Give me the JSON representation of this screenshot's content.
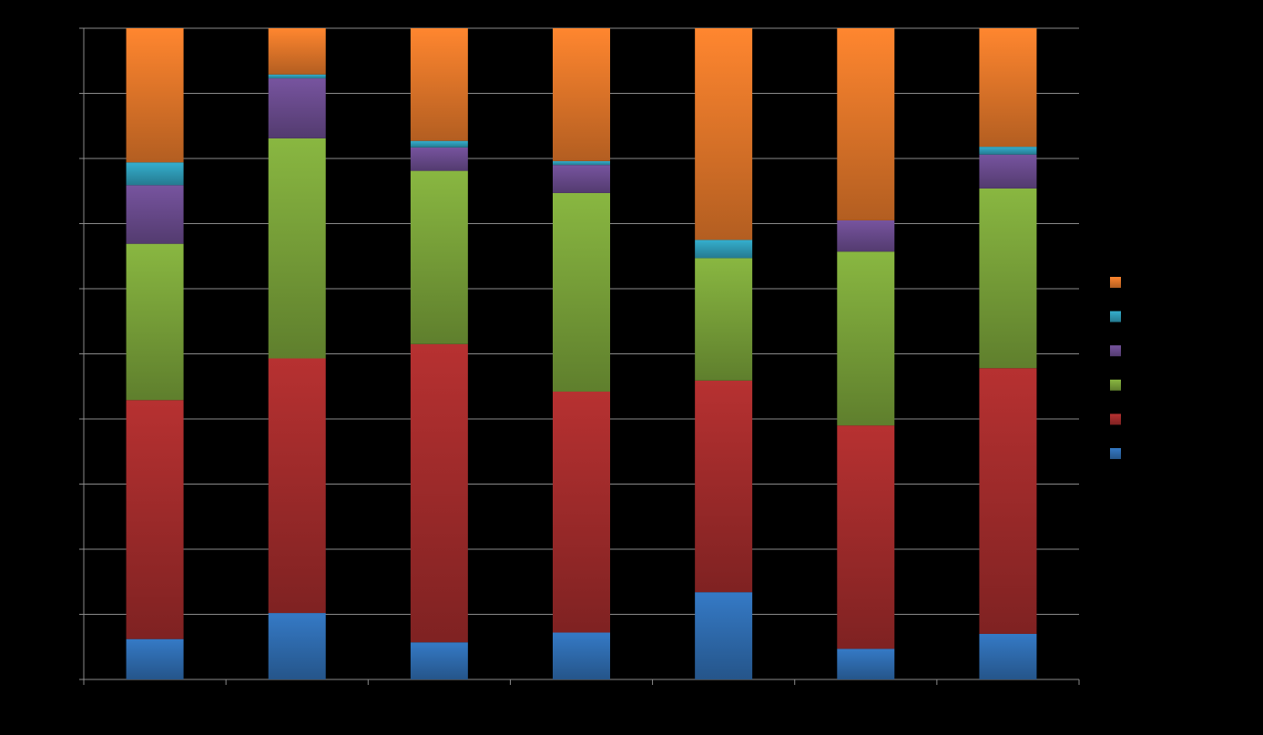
{
  "chart_data": {
    "type": "bar",
    "stacked": "percent",
    "categories": [
      "",
      "",
      "",
      "",
      "",
      "",
      ""
    ],
    "series": [
      {
        "color": "#2f6db1",
        "values": [
          6.2,
          10.2,
          5.7,
          7.2,
          13.4,
          4.7,
          7.0
        ]
      },
      {
        "color": "#a32c2c",
        "values": [
          36.7,
          39.1,
          45.8,
          37.0,
          32.5,
          34.3,
          40.8
        ]
      },
      {
        "color": "#7aa33a",
        "values": [
          24.0,
          33.8,
          26.6,
          30.5,
          18.8,
          26.7,
          27.6
        ]
      },
      {
        "color": "#6a4b8e",
        "values": [
          9.0,
          9.2,
          3.6,
          4.3,
          0.0,
          4.8,
          5.2
        ]
      },
      {
        "color": "#2f9cb8",
        "values": [
          3.5,
          0.6,
          1.0,
          0.6,
          2.8,
          0.0,
          1.2
        ]
      },
      {
        "color": "#e5782a",
        "values": [
          20.6,
          7.1,
          17.3,
          20.4,
          32.5,
          29.5,
          18.2
        ]
      }
    ],
    "ylim": [
      0,
      100
    ],
    "y_gridlines": 10,
    "grid": true,
    "legend": "right",
    "xlabel": "",
    "ylabel": "",
    "title": ""
  }
}
